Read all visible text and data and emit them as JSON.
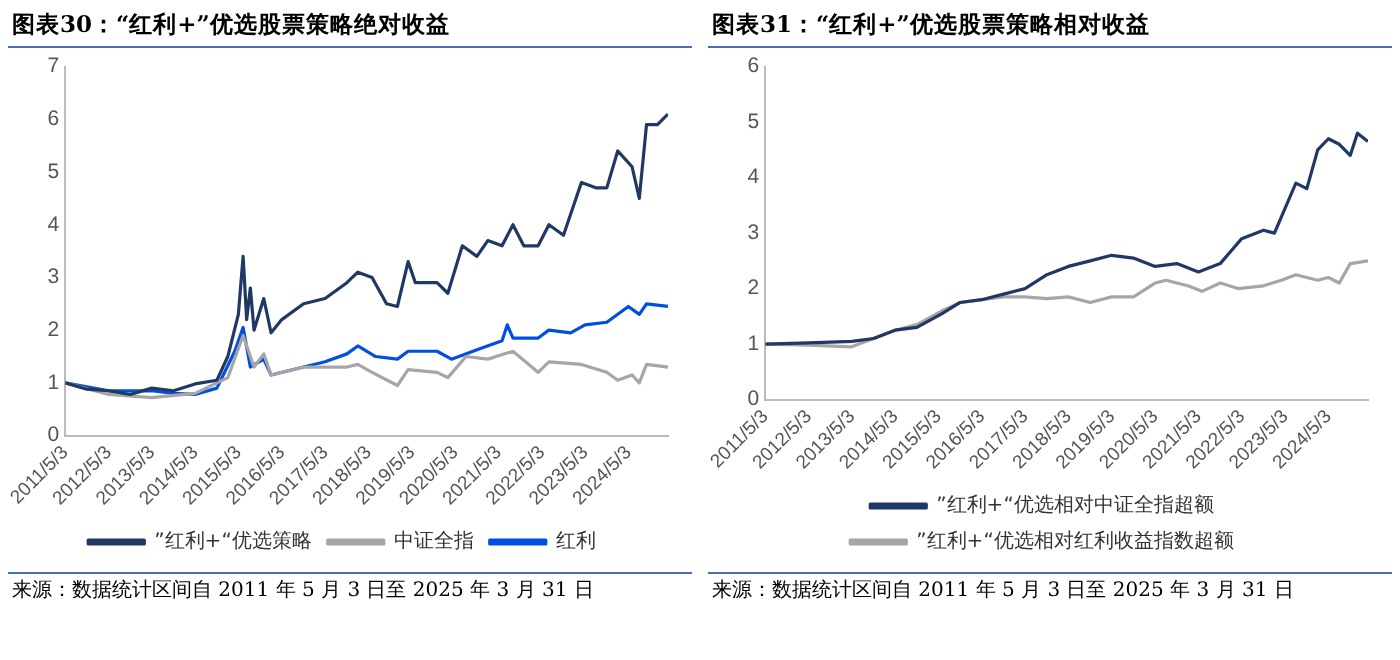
{
  "chart_data": [
    {
      "type": "line",
      "title": "图表30：“红利+”优选股票策略绝对收益",
      "legend": "bottom",
      "marker": "none",
      "xlim": [
        "2011-05-03",
        "2025-03-31"
      ],
      "xticks": [
        {
          "value": "2011-05-03",
          "label": "2011/5/3"
        },
        {
          "value": "2012-05-03",
          "label": "2012/5/3"
        },
        {
          "value": "2013-05-03",
          "label": "2013/5/3"
        },
        {
          "value": "2014-05-03",
          "label": "2014/5/3"
        },
        {
          "value": "2015-05-03",
          "label": "2015/5/3"
        },
        {
          "value": "2016-05-03",
          "label": "2016/5/3"
        },
        {
          "value": "2017-05-03",
          "label": "2017/5/3"
        },
        {
          "value": "2018-05-03",
          "label": "2018/5/3"
        },
        {
          "value": "2019-05-03",
          "label": "2019/5/3"
        },
        {
          "value": "2020-05-03",
          "label": "2020/5/3"
        },
        {
          "value": "2021-05-03",
          "label": "2021/5/3"
        },
        {
          "value": "2022-05-03",
          "label": "2022/5/3"
        },
        {
          "value": "2023-05-03",
          "label": "2023/5/3"
        },
        {
          "value": "2024-05-03",
          "label": "2024/5/3"
        }
      ],
      "ylim": [
        0,
        7
      ],
      "yticks": [
        0,
        1,
        2,
        3,
        4,
        5,
        6,
        7
      ],
      "annotations": [
        "来源：数据统计区间自 2011 年 5 月 3 日至 2025 年 3 月 31 日"
      ],
      "series": [
        {
          "name": "”红利+“优选策略",
          "color": "#203864",
          "x": [
            "2011-05-03",
            "2011-11-01",
            "2012-05-01",
            "2012-11-01",
            "2013-05-01",
            "2013-11-01",
            "2014-05-01",
            "2014-11-01",
            "2015-02-01",
            "2015-05-01",
            "2015-06-10",
            "2015-07-10",
            "2015-08-10",
            "2015-09-10",
            "2015-12-01",
            "2016-02-01",
            "2016-05-01",
            "2016-11-01",
            "2017-05-01",
            "2017-11-01",
            "2018-02-01",
            "2018-06-01",
            "2018-10-01",
            "2019-01-01",
            "2019-04-01",
            "2019-06-01",
            "2019-12-01",
            "2020-03-01",
            "2020-07-01",
            "2020-11-01",
            "2021-02-01",
            "2021-06-01",
            "2021-09-01",
            "2021-12-01",
            "2022-04-01",
            "2022-07-01",
            "2022-11-01",
            "2023-04-01",
            "2023-08-01",
            "2023-11-01",
            "2024-02-01",
            "2024-06-01",
            "2024-08-01",
            "2024-10-01",
            "2025-01-01",
            "2025-03-31"
          ],
          "values": [
            1.0,
            0.88,
            0.85,
            0.78,
            0.9,
            0.85,
            0.98,
            1.05,
            1.5,
            2.3,
            3.4,
            2.2,
            2.8,
            2.0,
            2.6,
            1.95,
            2.2,
            2.5,
            2.6,
            2.9,
            3.1,
            3.0,
            2.5,
            2.45,
            3.3,
            2.9,
            2.9,
            2.7,
            3.6,
            3.4,
            3.7,
            3.6,
            4.0,
            3.6,
            3.6,
            4.0,
            3.8,
            4.8,
            4.7,
            4.7,
            5.4,
            5.1,
            4.5,
            5.9,
            5.9,
            6.1
          ]
        },
        {
          "name": "中证全指",
          "color": "#a6a6a6",
          "x": [
            "2011-05-03",
            "2012-05-01",
            "2013-05-01",
            "2014-05-01",
            "2015-02-01",
            "2015-06-10",
            "2015-09-10",
            "2015-12-01",
            "2016-02-01",
            "2016-11-01",
            "2017-11-01",
            "2018-02-01",
            "2018-06-01",
            "2019-01-01",
            "2019-04-01",
            "2019-12-01",
            "2020-03-01",
            "2020-08-01",
            "2021-02-01",
            "2021-09-01",
            "2022-04-01",
            "2022-07-01",
            "2023-04-01",
            "2023-11-01",
            "2024-02-01",
            "2024-06-01",
            "2024-08-01",
            "2024-10-01",
            "2025-03-31"
          ],
          "values": [
            1.0,
            0.78,
            0.72,
            0.8,
            1.1,
            1.9,
            1.3,
            1.55,
            1.15,
            1.3,
            1.3,
            1.35,
            1.2,
            0.95,
            1.25,
            1.2,
            1.1,
            1.5,
            1.45,
            1.6,
            1.2,
            1.4,
            1.35,
            1.2,
            1.05,
            1.15,
            1.0,
            1.35,
            1.3
          ]
        },
        {
          "name": "红利",
          "color": "#0050e0",
          "x": [
            "2011-05-03",
            "2012-05-01",
            "2013-05-01",
            "2013-11-01",
            "2014-05-01",
            "2014-11-01",
            "2015-04-01",
            "2015-06-10",
            "2015-08-10",
            "2015-12-01",
            "2016-02-01",
            "2016-11-01",
            "2017-05-01",
            "2017-11-01",
            "2018-02-01",
            "2018-07-01",
            "2019-01-01",
            "2019-04-01",
            "2019-12-01",
            "2020-04-01",
            "2020-12-01",
            "2021-06-01",
            "2021-07-15",
            "2021-09-01",
            "2022-04-01",
            "2022-07-01",
            "2023-01-01",
            "2023-05-01",
            "2023-11-01",
            "2024-05-01",
            "2024-08-01",
            "2024-10-01",
            "2025-03-31"
          ],
          "values": [
            1.0,
            0.85,
            0.85,
            0.8,
            0.78,
            0.9,
            1.6,
            2.05,
            1.3,
            1.45,
            1.15,
            1.3,
            1.4,
            1.55,
            1.7,
            1.5,
            1.45,
            1.6,
            1.6,
            1.45,
            1.65,
            1.8,
            2.1,
            1.85,
            1.85,
            2.0,
            1.95,
            2.1,
            2.15,
            2.45,
            2.3,
            2.5,
            2.45
          ]
        }
      ]
    },
    {
      "type": "line",
      "title": "图表31：“红利+”优选股票策略相对收益",
      "legend": "bottom",
      "marker": "none",
      "xlim": [
        "2011-05-03",
        "2025-03-31"
      ],
      "xticks": [
        {
          "value": "2011-05-03",
          "label": "2011/5/3"
        },
        {
          "value": "2012-05-03",
          "label": "2012/5/3"
        },
        {
          "value": "2013-05-03",
          "label": "2013/5/3"
        },
        {
          "value": "2014-05-03",
          "label": "2014/5/3"
        },
        {
          "value": "2015-05-03",
          "label": "2015/5/3"
        },
        {
          "value": "2016-05-03",
          "label": "2016/5/3"
        },
        {
          "value": "2017-05-03",
          "label": "2017/5/3"
        },
        {
          "value": "2018-05-03",
          "label": "2018/5/3"
        },
        {
          "value": "2019-05-03",
          "label": "2019/5/3"
        },
        {
          "value": "2020-05-03",
          "label": "2020/5/3"
        },
        {
          "value": "2021-05-03",
          "label": "2021/5/3"
        },
        {
          "value": "2022-05-03",
          "label": "2022/5/3"
        },
        {
          "value": "2023-05-03",
          "label": "2023/5/3"
        },
        {
          "value": "2024-05-03",
          "label": "2024/5/3"
        }
      ],
      "ylim": [
        0,
        6
      ],
      "yticks": [
        0,
        1,
        2,
        3,
        4,
        5,
        6
      ],
      "annotations": [
        "来源：数据统计区间自 2011 年 5 月 3 日至 2025 年 3 月 31 日"
      ],
      "series": [
        {
          "name": "”红利+“优选相对中证全指超额",
          "color": "#203864",
          "x": [
            "2011-05-03",
            "2012-05-01",
            "2013-05-01",
            "2013-11-01",
            "2014-05-01",
            "2014-11-01",
            "2015-06-01",
            "2015-11-01",
            "2016-05-01",
            "2016-11-01",
            "2017-05-01",
            "2017-11-01",
            "2018-05-01",
            "2018-11-01",
            "2019-05-01",
            "2019-11-01",
            "2020-05-01",
            "2020-11-01",
            "2021-05-01",
            "2021-11-01",
            "2022-05-01",
            "2022-11-01",
            "2023-02-01",
            "2023-08-01",
            "2023-11-01",
            "2024-02-01",
            "2024-05-01",
            "2024-08-01",
            "2024-11-01",
            "2025-01-01",
            "2025-03-31"
          ],
          "values": [
            1.0,
            1.02,
            1.05,
            1.1,
            1.25,
            1.3,
            1.55,
            1.75,
            1.8,
            1.9,
            2.0,
            2.25,
            2.4,
            2.5,
            2.6,
            2.55,
            2.4,
            2.45,
            2.3,
            2.45,
            2.9,
            3.05,
            3.0,
            3.9,
            3.8,
            4.5,
            4.7,
            4.6,
            4.4,
            4.8,
            4.65
          ]
        },
        {
          "name": "”红利+“优选相对红利收益指数超额",
          "color": "#a6a6a6",
          "x": [
            "2011-05-03",
            "2012-05-01",
            "2013-05-01",
            "2014-05-01",
            "2014-11-01",
            "2015-06-01",
            "2015-11-01",
            "2016-05-01",
            "2016-11-01",
            "2017-05-01",
            "2017-11-01",
            "2018-05-01",
            "2018-11-01",
            "2019-05-01",
            "2019-11-01",
            "2020-05-01",
            "2020-08-01",
            "2021-02-01",
            "2021-06-01",
            "2021-11-01",
            "2022-04-01",
            "2022-11-01",
            "2023-04-01",
            "2023-08-01",
            "2024-02-01",
            "2024-05-01",
            "2024-08-01",
            "2024-11-01",
            "2025-03-31"
          ],
          "values": [
            1.0,
            0.98,
            0.95,
            1.25,
            1.35,
            1.6,
            1.75,
            1.8,
            1.85,
            1.85,
            1.82,
            1.85,
            1.75,
            1.85,
            1.85,
            2.1,
            2.15,
            2.05,
            1.95,
            2.1,
            2.0,
            2.05,
            2.15,
            2.25,
            2.15,
            2.2,
            2.1,
            2.45,
            2.5
          ]
        }
      ]
    }
  ]
}
